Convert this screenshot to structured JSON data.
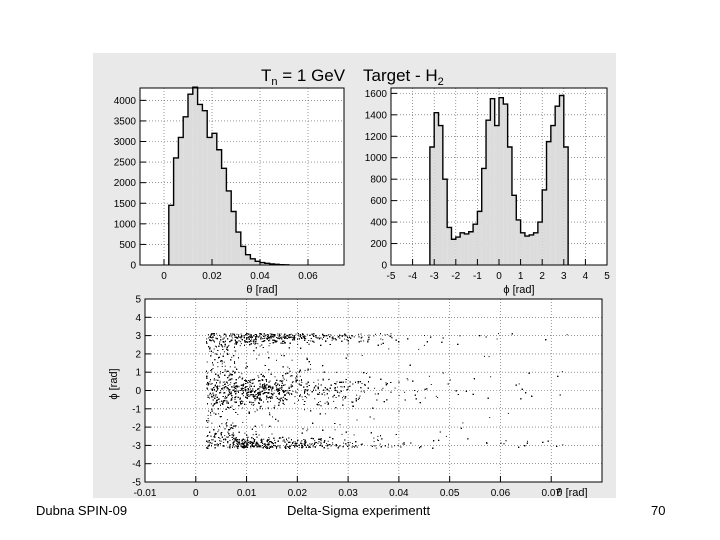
{
  "figure": {
    "title_tn": "T",
    "title_tn_sub": "n",
    "title_tn_rest": " = 1 GeV",
    "title_target": "Target - H",
    "title_target_sub": "2"
  },
  "footer": {
    "left": "Dubna SPIN-09",
    "center": "Delta-Sigma experimentt",
    "right": "70"
  },
  "chart_data": [
    {
      "type": "histogram",
      "xlabel": "θ [rad]",
      "ylabel": "",
      "xlim": [
        -0.01,
        0.075
      ],
      "ylim": [
        0,
        4300
      ],
      "xticks": [
        0,
        0.02,
        0.04,
        0.06
      ],
      "xticklabels": [
        "0",
        "0.02",
        "0.04",
        "0.06"
      ],
      "yticks": [
        0,
        500,
        1000,
        1500,
        2000,
        2500,
        3000,
        3500,
        4000
      ],
      "bin_width": 0.002,
      "x": [
        0.003,
        0.005,
        0.007,
        0.009,
        0.011,
        0.013,
        0.015,
        0.017,
        0.019,
        0.021,
        0.023,
        0.025,
        0.027,
        0.029,
        0.031,
        0.033,
        0.035,
        0.037,
        0.039,
        0.041,
        0.043,
        0.045,
        0.047,
        0.049,
        0.051
      ],
      "values": [
        1450,
        2600,
        3100,
        3600,
        4150,
        4320,
        3900,
        3750,
        3100,
        3200,
        2800,
        2350,
        1800,
        1300,
        800,
        450,
        250,
        150,
        90,
        60,
        40,
        25,
        15,
        8,
        5
      ],
      "grid": "dotted"
    },
    {
      "type": "histogram",
      "xlabel": "ϕ [rad]",
      "ylabel": "",
      "xlim": [
        -5,
        5
      ],
      "ylim": [
        0,
        1650
      ],
      "xticks": [
        -5,
        -4,
        -3,
        -2,
        -1,
        0,
        1,
        2,
        3,
        4,
        5
      ],
      "yticks": [
        0,
        200,
        400,
        600,
        800,
        1000,
        1200,
        1400,
        1600
      ],
      "bin_width": 0.2,
      "x": [
        -3.1,
        -2.9,
        -2.7,
        -2.5,
        -2.3,
        -2.1,
        -1.9,
        -1.7,
        -1.5,
        -1.3,
        -1.1,
        -0.9,
        -0.7,
        -0.5,
        -0.3,
        -0.1,
        0.1,
        0.3,
        0.5,
        0.7,
        0.9,
        1.1,
        1.3,
        1.5,
        1.7,
        1.9,
        2.1,
        2.3,
        2.5,
        2.7,
        2.9,
        3.1
      ],
      "values": [
        1100,
        1420,
        1300,
        800,
        350,
        240,
        260,
        300,
        290,
        310,
        380,
        500,
        900,
        1350,
        1550,
        1300,
        1560,
        1500,
        1100,
        650,
        420,
        300,
        270,
        280,
        300,
        400,
        700,
        1150,
        1300,
        1480,
        1580,
        1100
      ],
      "grid": "dotted"
    },
    {
      "type": "scatter",
      "xlabel": "θ [rad]",
      "ylabel": "ϕ [rad]",
      "xlim": [
        -0.01,
        0.08
      ],
      "ylim": [
        -5,
        5
      ],
      "xticks": [
        -0.01,
        0,
        0.01,
        0.02,
        0.03,
        0.04,
        0.05,
        0.06,
        0.07
      ],
      "xticklabels": [
        "-0.01",
        "0",
        "0.01",
        "0.02",
        "0.03",
        "0.04",
        "0.05",
        "0.06",
        "0.07"
      ],
      "yticks": [
        -5,
        -4,
        -3,
        -2,
        -1,
        0,
        1,
        2,
        3,
        4,
        5
      ],
      "bands_phi": [
        -3,
        0,
        3
      ],
      "grid": "dotted"
    }
  ]
}
